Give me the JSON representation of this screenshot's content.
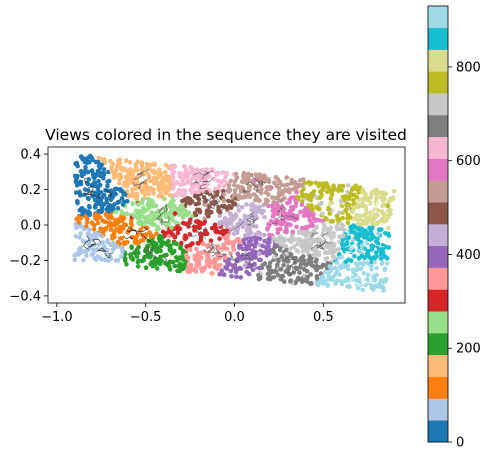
{
  "chart_data": {
    "type": "scatter",
    "title": "Views colored in the sequence they are visited",
    "xlabel": "",
    "ylabel": "",
    "xlim": [
      -1.05,
      0.96
    ],
    "ylim": [
      -0.44,
      0.44
    ],
    "xticks": [
      -1.0,
      -0.5,
      0.0,
      0.5
    ],
    "xtick_labels": [
      "−1.0",
      "−0.5",
      "0.0",
      "0.5"
    ],
    "yticks": [
      -0.4,
      -0.2,
      0.0,
      0.2,
      0.4
    ],
    "ytick_labels": [
      "−0.4",
      "−0.2",
      "0.0",
      "0.2",
      "0.4"
    ],
    "grid": false,
    "region_corners": [
      [
        -0.9,
        0.4
      ],
      [
        0.9,
        0.2
      ],
      [
        0.85,
        -0.38
      ],
      [
        -0.9,
        -0.2
      ]
    ],
    "visit_order_range": [
      0,
      930
    ],
    "colorbar": {
      "label": "",
      "colormap": "tab20",
      "colors": [
        "#1f77b4",
        "#aec7e8",
        "#ff7f0e",
        "#ffbb78",
        "#2ca02c",
        "#98df8a",
        "#d62728",
        "#ff9896",
        "#9467bd",
        "#c5b0d5",
        "#8c564b",
        "#c49c94",
        "#e377c2",
        "#f7b6d2",
        "#7f7f7f",
        "#c7c7c7",
        "#bcbd22",
        "#dbdb8d",
        "#17becf",
        "#9edae5"
      ],
      "range": [
        0,
        930
      ],
      "ticks": [
        0,
        200,
        400,
        600,
        800
      ],
      "tick_labels": [
        "0",
        "200",
        "400",
        "600",
        "800"
      ]
    },
    "view_groups": [
      {
        "order": 0,
        "center": [
          -0.78,
          0.2
        ]
      },
      {
        "order": 50,
        "center": [
          -0.78,
          -0.12
        ]
      },
      {
        "order": 95,
        "center": [
          -0.62,
          -0.05
        ]
      },
      {
        "order": 140,
        "center": [
          -0.52,
          0.25
        ]
      },
      {
        "order": 190,
        "center": [
          -0.45,
          -0.15
        ]
      },
      {
        "order": 240,
        "center": [
          -0.42,
          0.05
        ]
      },
      {
        "order": 290,
        "center": [
          -0.22,
          -0.05
        ]
      },
      {
        "order": 330,
        "center": [
          -0.1,
          -0.15
        ]
      },
      {
        "order": 380,
        "center": [
          0.05,
          -0.18
        ]
      },
      {
        "order": 425,
        "center": [
          0.05,
          0.05
        ]
      },
      {
        "order": 475,
        "center": [
          -0.12,
          0.12
        ]
      },
      {
        "order": 520,
        "center": [
          0.12,
          0.2
        ]
      },
      {
        "order": 560,
        "center": [
          0.3,
          0.05
        ]
      },
      {
        "order": 610,
        "center": [
          -0.2,
          0.25
        ]
      },
      {
        "order": 660,
        "center": [
          0.3,
          -0.22
        ]
      },
      {
        "order": 700,
        "center": [
          0.48,
          -0.1
        ]
      },
      {
        "order": 740,
        "center": [
          0.55,
          0.12
        ]
      },
      {
        "order": 790,
        "center": [
          0.8,
          0.1
        ]
      },
      {
        "order": 850,
        "center": [
          0.72,
          -0.12
        ]
      },
      {
        "order": 900,
        "center": [
          0.72,
          -0.3
        ]
      }
    ]
  }
}
